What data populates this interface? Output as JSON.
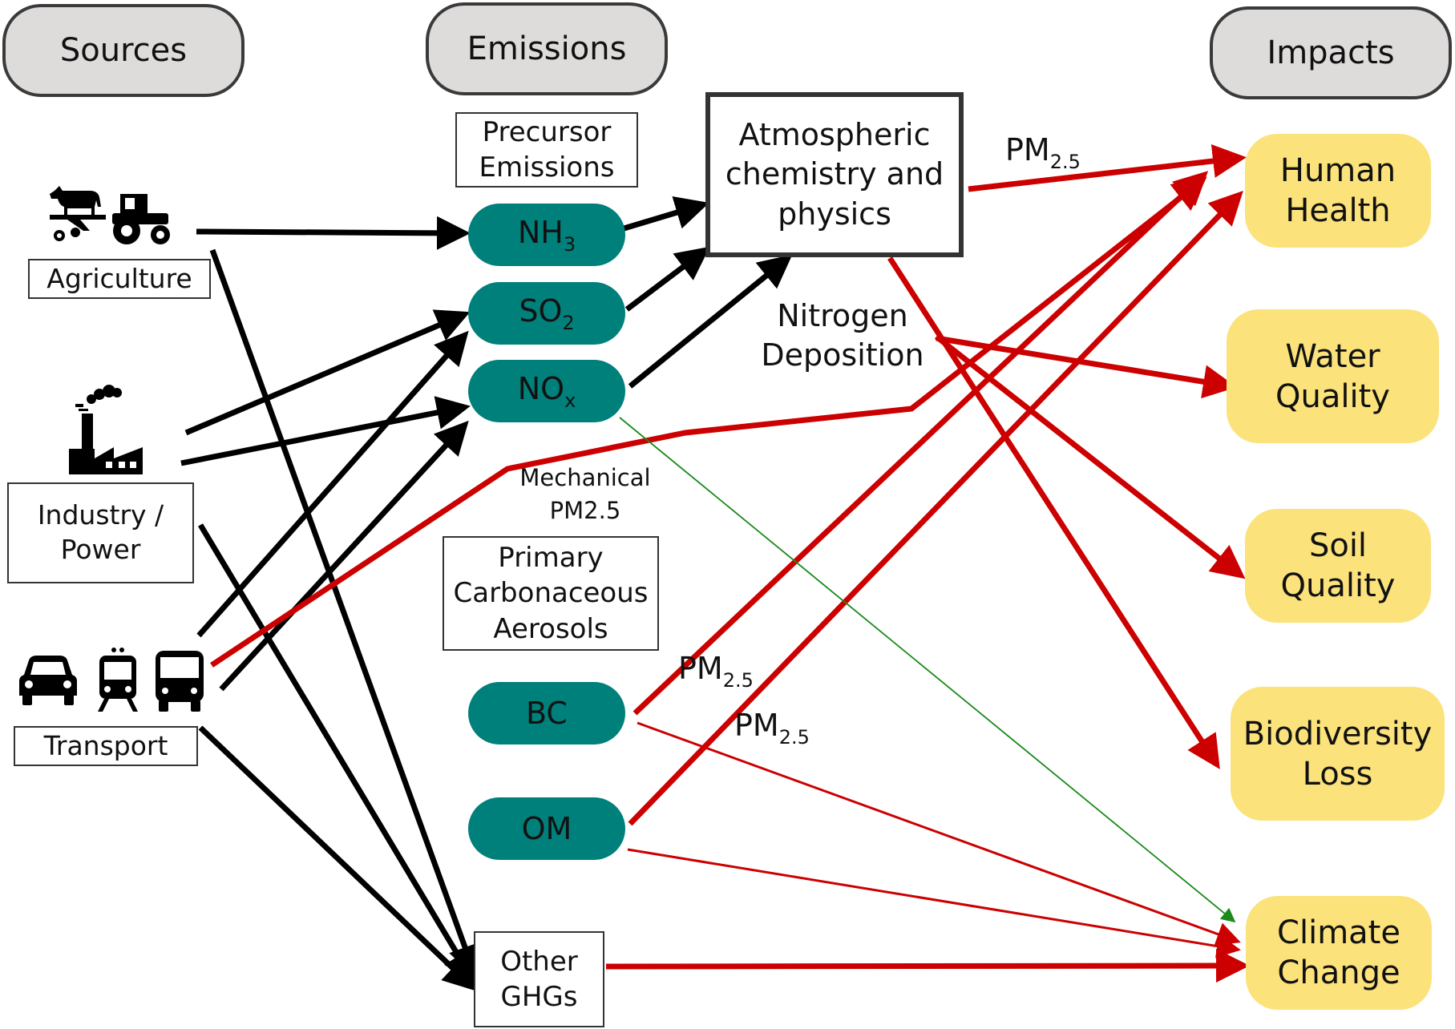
{
  "headers": {
    "sources": "Sources",
    "emissions": "Emissions",
    "impacts": "Impacts"
  },
  "sources": {
    "agriculture": "Agriculture",
    "industry": "Industry / Power",
    "transport": "Transport"
  },
  "emissions": {
    "precursor_box": "Precursor Emissions",
    "primary_box": "Primary Carbonaceous Aerosols",
    "nh3": {
      "base": "NH",
      "sub": "3"
    },
    "so2": {
      "base": "SO",
      "sub": "2"
    },
    "nox": {
      "base": "NO",
      "sub": "x"
    },
    "bc": "BC",
    "om": "OM",
    "other_ghgs": "Other GHGs"
  },
  "process": {
    "atmos": "Atmospheric chemistry and physics"
  },
  "labels": {
    "pm25_base": "PM",
    "pm25_sub": "2.5",
    "nitrogen_deposition": "Nitrogen Deposition",
    "mechanical": "Mechanical PM2.5"
  },
  "impacts": {
    "human_health": "Human Health",
    "water_quality": "Water Quality",
    "soil_quality": "Soil Quality",
    "biodiversity": "Biodiversity Loss",
    "climate": "Climate Change"
  },
  "icons": [
    "cow-icon",
    "tractor-icon",
    "factory-icon",
    "car-icon",
    "train-icon",
    "bus-icon"
  ],
  "colors": {
    "black_arrow": "#000000",
    "red_arrow": "#cc0000",
    "green_arrow": "#1a8a1a",
    "pill": "#00807b",
    "impact": "#fbe27b",
    "header": "#dedbdb"
  }
}
